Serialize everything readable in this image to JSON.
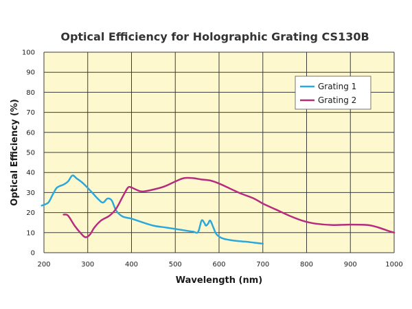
{
  "chart_data": {
    "type": "line",
    "title": "Optical Efficiency for Holographic Grating CS130B",
    "xlabel": "Wavelength (nm)",
    "ylabel": "Optical Efficiency (%)",
    "xlim": [
      200,
      1000
    ],
    "ylim": [
      0,
      100
    ],
    "x_ticks": [
      "200",
      "300",
      "400",
      "500",
      "600",
      "700",
      "800",
      "900",
      "1000"
    ],
    "y_ticks": [
      "0",
      "10",
      "20",
      "30",
      "40",
      "50",
      "60",
      "70",
      "80",
      "90",
      "100"
    ],
    "grid": true,
    "legend_position": "top-right",
    "plot_background": "#fdf8cd",
    "series": [
      {
        "name": "Grating 1",
        "color": "#2aa8dc",
        "points": [
          [
            195,
            23.5
          ],
          [
            210,
            25
          ],
          [
            220,
            29
          ],
          [
            230,
            32.5
          ],
          [
            245,
            34
          ],
          [
            255,
            35.5
          ],
          [
            265,
            38.5
          ],
          [
            275,
            37
          ],
          [
            290,
            34.5
          ],
          [
            310,
            30
          ],
          [
            325,
            26.5
          ],
          [
            335,
            25
          ],
          [
            345,
            27
          ],
          [
            355,
            26
          ],
          [
            365,
            21
          ],
          [
            380,
            18
          ],
          [
            400,
            17
          ],
          [
            420,
            15.5
          ],
          [
            450,
            13.5
          ],
          [
            480,
            12.5
          ],
          [
            510,
            11.5
          ],
          [
            540,
            10.5
          ],
          [
            552,
            10.3
          ],
          [
            560,
            16
          ],
          [
            566,
            15
          ],
          [
            570,
            13.5
          ],
          [
            575,
            14.5
          ],
          [
            580,
            16
          ],
          [
            588,
            12
          ],
          [
            595,
            9
          ],
          [
            610,
            7
          ],
          [
            635,
            6
          ],
          [
            660,
            5.5
          ],
          [
            680,
            5
          ],
          [
            700,
            4.5
          ]
        ]
      },
      {
        "name": "Grating 2",
        "color": "#b62b7d",
        "points": [
          [
            245,
            19
          ],
          [
            255,
            18.5
          ],
          [
            270,
            13.5
          ],
          [
            285,
            9.5
          ],
          [
            295,
            7.7
          ],
          [
            305,
            9
          ],
          [
            315,
            12.5
          ],
          [
            330,
            16
          ],
          [
            350,
            18.5
          ],
          [
            365,
            22
          ],
          [
            380,
            28
          ],
          [
            392,
            32.5
          ],
          [
            400,
            32.5
          ],
          [
            410,
            31.5
          ],
          [
            425,
            30.5
          ],
          [
            450,
            31.5
          ],
          [
            475,
            33
          ],
          [
            500,
            35.5
          ],
          [
            520,
            37.2
          ],
          [
            540,
            37.2
          ],
          [
            560,
            36.5
          ],
          [
            580,
            36
          ],
          [
            600,
            34.5
          ],
          [
            625,
            32
          ],
          [
            650,
            29.5
          ],
          [
            680,
            27
          ],
          [
            700,
            24.5
          ],
          [
            730,
            21.5
          ],
          [
            760,
            18.5
          ],
          [
            790,
            16
          ],
          [
            820,
            14.5
          ],
          [
            860,
            13.8
          ],
          [
            900,
            14
          ],
          [
            940,
            13.8
          ],
          [
            965,
            12.5
          ],
          [
            985,
            11
          ],
          [
            1000,
            10
          ]
        ]
      }
    ]
  }
}
